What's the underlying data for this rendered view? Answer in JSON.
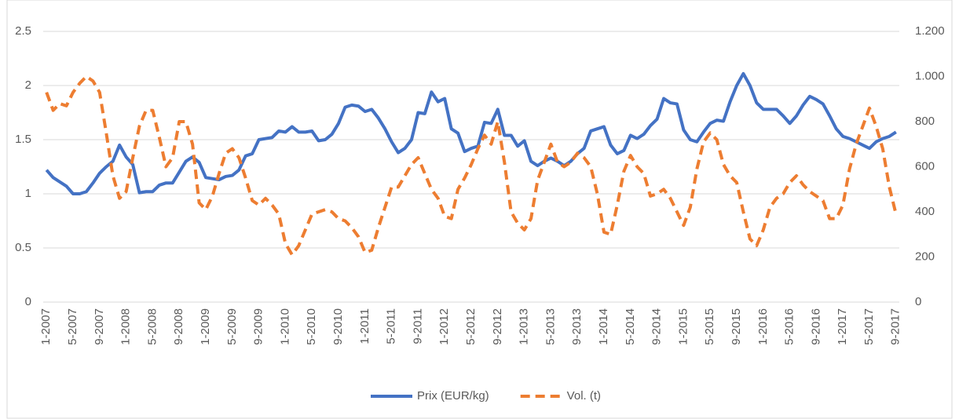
{
  "chart_data": {
    "type": "line",
    "categories": [
      "1-2007",
      null,
      null,
      null,
      "5-2007",
      null,
      null,
      null,
      "9-2007",
      null,
      null,
      null,
      "1-2008",
      null,
      null,
      null,
      "5-2008",
      null,
      null,
      null,
      "9-2008",
      null,
      null,
      null,
      "1-2009",
      null,
      null,
      null,
      "5-2009",
      null,
      null,
      null,
      "9-2009",
      null,
      null,
      null,
      "1-2010",
      null,
      null,
      null,
      "5-2010",
      null,
      null,
      null,
      "9-2010",
      null,
      null,
      null,
      "1-2011",
      null,
      null,
      null,
      "5-2011",
      null,
      null,
      null,
      "9-2011",
      null,
      null,
      null,
      "1-2012",
      null,
      null,
      null,
      "5-2012",
      null,
      null,
      null,
      "9-2012",
      null,
      null,
      null,
      "1-2013",
      null,
      null,
      null,
      "5-2013",
      null,
      null,
      null,
      "9-2013",
      null,
      null,
      null,
      "1-2014",
      null,
      null,
      null,
      "5-2014",
      null,
      null,
      null,
      "9-2014",
      null,
      null,
      null,
      "1-2015",
      null,
      null,
      null,
      "5-2015",
      null,
      null,
      null,
      "9-2015",
      null,
      null,
      null,
      "1-2016",
      null,
      null,
      null,
      "5-2016",
      null,
      null,
      null,
      "9-2016",
      null,
      null,
      null,
      "1-2017",
      null,
      null,
      null,
      "5-2017",
      null,
      null,
      null,
      "9-2017"
    ],
    "series": [
      {
        "name": "Prix (EUR/kg)",
        "color": "#4472c4",
        "dashed": false,
        "values": [
          1.22,
          1.15,
          1.11,
          1.07,
          1.0,
          1.0,
          1.02,
          1.1,
          1.19,
          1.25,
          1.3,
          1.45,
          1.34,
          1.27,
          1.01,
          1.02,
          1.02,
          1.08,
          1.1,
          1.1,
          1.2,
          1.3,
          1.34,
          1.29,
          1.15,
          1.14,
          1.13,
          1.16,
          1.17,
          1.22,
          1.35,
          1.37,
          1.5,
          1.51,
          1.52,
          1.58,
          1.57,
          1.62,
          1.57,
          1.57,
          1.58,
          1.49,
          1.5,
          1.55,
          1.65,
          1.8,
          1.82,
          1.81,
          1.76,
          1.78,
          1.7,
          1.6,
          1.48,
          1.38,
          1.42,
          1.5,
          1.75,
          1.74,
          1.94,
          1.85,
          1.88,
          1.6,
          1.56,
          1.39,
          1.42,
          1.44,
          1.66,
          1.65,
          1.78,
          1.54,
          1.54,
          1.44,
          1.49,
          1.3,
          1.26,
          1.3,
          1.33,
          1.3,
          1.26,
          1.3,
          1.37,
          1.42,
          1.58,
          1.6,
          1.62,
          1.45,
          1.37,
          1.4,
          1.54,
          1.51,
          1.55,
          1.63,
          1.69,
          1.88,
          1.84,
          1.83,
          1.59,
          1.5,
          1.48,
          1.57,
          1.65,
          1.68,
          1.67,
          1.85,
          2.0,
          2.11,
          2.0,
          1.84,
          1.78,
          1.78,
          1.78,
          1.72,
          1.65,
          1.72,
          1.82,
          1.9,
          1.87,
          1.83,
          1.72,
          1.6,
          1.53,
          1.51,
          1.48,
          1.45,
          1.42,
          1.48,
          1.51,
          1.53,
          1.57
        ]
      },
      {
        "name": "Vol. (t)",
        "color": "#ed7d31",
        "dashed": true,
        "axis": "y2",
        "values": [
          930,
          850,
          880,
          870,
          930,
          970,
          1000,
          980,
          930,
          750,
          560,
          460,
          490,
          640,
          780,
          850,
          850,
          730,
          600,
          640,
          800,
          800,
          700,
          440,
          410,
          470,
          570,
          660,
          680,
          640,
          550,
          450,
          430,
          460,
          430,
          390,
          260,
          210,
          250,
          320,
          390,
          400,
          410,
          400,
          370,
          360,
          330,
          290,
          220,
          230,
          330,
          420,
          510,
          510,
          560,
          610,
          640,
          570,
          500,
          460,
          380,
          370,
          500,
          550,
          610,
          680,
          740,
          700,
          800,
          620,
          400,
          350,
          320,
          370,
          540,
          620,
          700,
          620,
          600,
          620,
          660,
          640,
          600,
          480,
          310,
          300,
          430,
          580,
          650,
          600,
          570,
          470,
          480,
          500,
          460,
          400,
          340,
          420,
          590,
          710,
          750,
          720,
          610,
          560,
          530,
          400,
          280,
          250,
          320,
          420,
          460,
          480,
          530,
          560,
          520,
          490,
          470,
          450,
          370,
          370,
          430,
          590,
          700,
          780,
          860,
          780,
          680,
          510,
          390
        ]
      }
    ],
    "ylim": [
      0,
      2.5
    ],
    "yticks": [
      0,
      0.5,
      1,
      1.5,
      2,
      2.5
    ],
    "y2lim": [
      0,
      1200
    ],
    "y2ticks": [
      0,
      200,
      400,
      600,
      800,
      {
        "value": 1000,
        "label": "1.000"
      },
      {
        "value": 1200,
        "label": "1.200"
      }
    ],
    "grid": true,
    "legend": "bottom"
  }
}
